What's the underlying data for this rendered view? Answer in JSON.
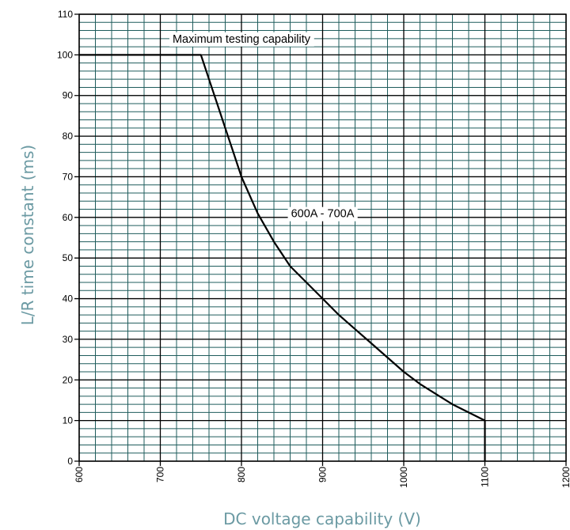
{
  "chart_data": {
    "type": "line",
    "xlabel": "DC voltage capability (V)",
    "ylabel": "L/R time constant (ms)",
    "xlim": [
      600,
      1200
    ],
    "ylim": [
      0,
      110
    ],
    "x_ticks": [
      600,
      700,
      800,
      900,
      1000,
      1100,
      1200
    ],
    "y_ticks": [
      0,
      10,
      20,
      30,
      40,
      50,
      60,
      70,
      80,
      90,
      100,
      110
    ],
    "x_minor_step": 20,
    "y_minor_step": 2,
    "grid": true,
    "series": [
      {
        "name": "600A - 700A",
        "x": [
          600,
          750,
          760,
          770,
          780,
          790,
          800,
          820,
          840,
          860,
          880,
          900,
          920,
          940,
          960,
          980,
          1000,
          1020,
          1040,
          1060,
          1080,
          1100,
          1100
        ],
        "y": [
          100,
          100,
          94,
          88,
          82,
          76,
          70,
          61,
          54,
          48,
          44,
          40,
          36,
          32.5,
          29,
          25.5,
          22,
          19,
          16.5,
          14,
          12,
          10,
          0
        ]
      }
    ],
    "annotations": [
      {
        "text": "Maximum testing capability",
        "x": 800,
        "y": 104
      },
      {
        "text": "600A - 700A",
        "x": 900,
        "y": 61
      }
    ],
    "colors": {
      "grid": "#1f5c5c",
      "grid_major": "#000000",
      "line": "#000000",
      "axis_title": "#6b9aa3"
    }
  }
}
